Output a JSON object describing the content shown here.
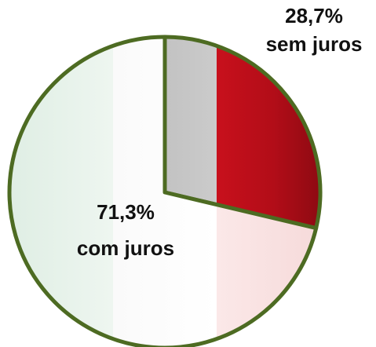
{
  "chart_data": {
    "type": "pie",
    "categories": [
      "sem juros",
      "com juros"
    ],
    "values": [
      28.7,
      71.3
    ],
    "value_labels": [
      "28,7%",
      "71,3%"
    ]
  }
}
